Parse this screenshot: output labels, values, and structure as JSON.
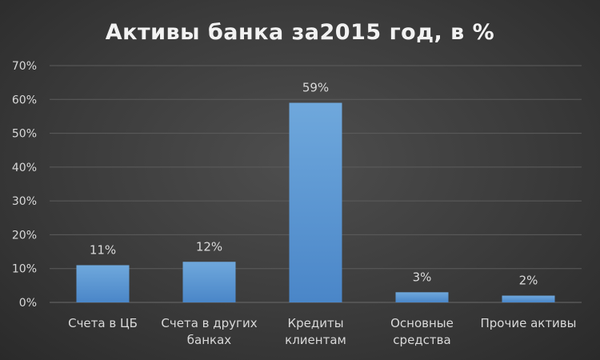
{
  "chart_data": {
    "type": "bar",
    "title": "Активы банка за2015 год, в %",
    "categories": [
      [
        "Счета в ЦБ"
      ],
      [
        "Счета в других",
        "банках"
      ],
      [
        "Кредиты",
        "клиентам"
      ],
      [
        "Основные",
        "средства"
      ],
      [
        "Прочие активы"
      ]
    ],
    "values": [
      11,
      12,
      59,
      3,
      2
    ],
    "data_labels": [
      "11%",
      "12%",
      "59%",
      "3%",
      "2%"
    ],
    "ylim": [
      0,
      70
    ],
    "yticks": [
      "0%",
      "10%",
      "20%",
      "30%",
      "40%",
      "50%",
      "60%",
      "70%"
    ],
    "grid": true,
    "legend": "none",
    "bar_color_top": "#6fa8dc",
    "bar_color_bottom": "#4a86c8"
  }
}
